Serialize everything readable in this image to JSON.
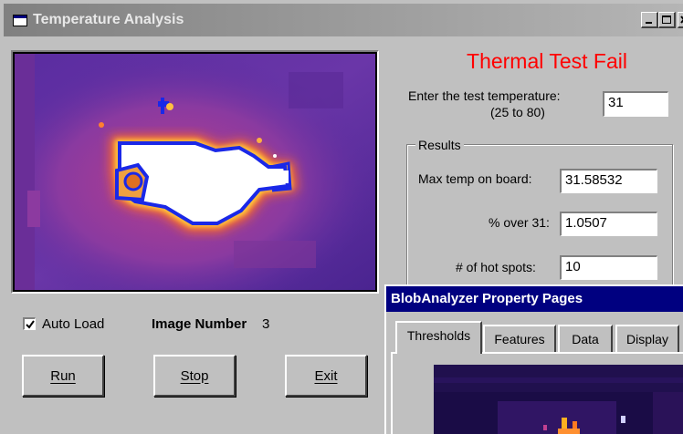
{
  "window": {
    "title": "Temperature Analysis",
    "icon": "app-window-icon",
    "controls": [
      "minimize-icon",
      "maximize-icon",
      "close-icon"
    ]
  },
  "status": {
    "text": "Thermal Test Fail",
    "color": "#ff0000"
  },
  "temperature_input": {
    "label_line1": "Enter the test temperature:",
    "label_line2": "(25 to 80)",
    "value": "31"
  },
  "results": {
    "group_label": "Results",
    "max_temp_label": "Max temp on board:",
    "max_temp_value": "31.58532",
    "percent_over_label": "% over 31:",
    "percent_over_value": "1.0507",
    "hot_spots_label": "# of hot spots:",
    "hot_spots_value": "10"
  },
  "auto_load": {
    "label": "Auto Load",
    "checked": true
  },
  "image_number": {
    "label": "Image Number",
    "value": "3"
  },
  "buttons": {
    "run": "Run",
    "stop": "Stop",
    "exit": "Exit"
  },
  "property_pages": {
    "title": "BlobAnalyzer Property Pages",
    "title_bar_color": "#000080",
    "tabs": [
      "Thresholds",
      "Features",
      "Data",
      "Display"
    ],
    "active_tab": "Thresholds"
  }
}
